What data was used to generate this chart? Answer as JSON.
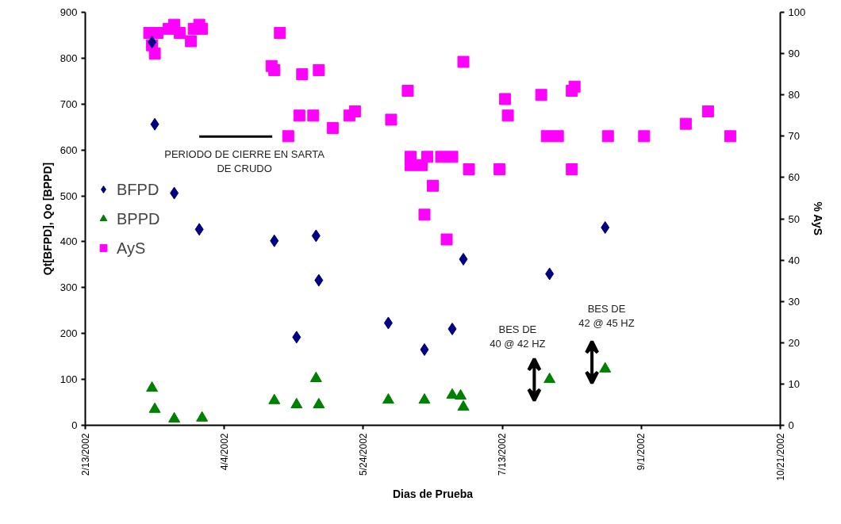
{
  "chart_data": {
    "type": "scatter",
    "xlabel": "Dias de Prueba",
    "ylabel": "Qt[BFPD], Qo [BPPD]",
    "y2label": "% AyS",
    "xlim": [
      "2002-02-13",
      "2002-10-21"
    ],
    "xticks": [
      {
        "value": "2002-02-13",
        "label": "2/13/2002"
      },
      {
        "value": "2002-04-04",
        "label": "4/4/2002"
      },
      {
        "value": "2002-05-24",
        "label": "5/24/2002"
      },
      {
        "value": "2002-07-13",
        "label": "7/13/2002"
      },
      {
        "value": "2002-09-01",
        "label": "9/1/2002"
      },
      {
        "value": "2002-10-21",
        "label": "10/21/2002"
      }
    ],
    "ylim": [
      0,
      900
    ],
    "yticks": [
      0,
      100,
      200,
      300,
      400,
      500,
      600,
      700,
      800,
      900
    ],
    "y2lim": [
      0,
      100
    ],
    "y2ticks": [
      0,
      10,
      20,
      30,
      40,
      50,
      60,
      70,
      80,
      90,
      100
    ],
    "grid": false,
    "legend": "left",
    "series": [
      {
        "name": "BFPD",
        "color": "#000080",
        "marker": "diamond",
        "x": [
          "2002-03-09",
          "2002-03-10",
          "2002-03-17",
          "2002-03-26",
          "2002-04-22",
          "2002-04-30",
          "2002-05-07",
          "2002-05-08",
          "2002-06-02",
          "2002-06-15",
          "2002-06-25",
          "2002-06-29",
          "2002-07-30",
          "2002-08-19"
        ],
        "values": [
          835,
          656,
          506,
          427,
          402,
          192,
          413,
          316,
          223,
          165,
          210,
          362,
          330,
          431
        ]
      },
      {
        "name": "BPPD",
        "color": "#008000",
        "marker": "triangle",
        "x": [
          "2002-03-09",
          "2002-03-10",
          "2002-03-17",
          "2002-03-27",
          "2002-04-22",
          "2002-04-30",
          "2002-05-07",
          "2002-05-08",
          "2002-06-02",
          "2002-06-15",
          "2002-06-25",
          "2002-06-28",
          "2002-06-29",
          "2002-07-30",
          "2002-08-19"
        ],
        "values": [
          81,
          35,
          14,
          16,
          54,
          45,
          102,
          45,
          55,
          55,
          66,
          64,
          40,
          100,
          123
        ]
      },
      {
        "name": "AyS",
        "color": "#ff00ff",
        "marker": "square",
        "axis": "y2",
        "x": [
          "2002-03-08",
          "2002-03-09",
          "2002-03-10",
          "2002-03-11",
          "2002-03-15",
          "2002-03-17",
          "2002-03-19",
          "2002-03-23",
          "2002-03-24",
          "2002-03-26",
          "2002-03-27",
          "2002-04-21",
          "2002-04-22",
          "2002-04-24",
          "2002-04-27",
          "2002-05-01",
          "2002-05-02",
          "2002-05-06",
          "2002-05-08",
          "2002-05-13",
          "2002-05-19",
          "2002-05-21",
          "2002-06-03",
          "2002-06-09",
          "2002-06-10",
          "2002-06-10",
          "2002-06-14",
          "2002-06-15",
          "2002-06-16",
          "2002-06-18",
          "2002-06-21",
          "2002-06-23",
          "2002-06-25",
          "2002-06-29",
          "2002-07-01",
          "2002-07-12",
          "2002-07-14",
          "2002-07-15",
          "2002-07-27",
          "2002-07-29",
          "2002-08-02",
          "2002-08-07",
          "2002-08-07",
          "2002-08-08",
          "2002-08-20",
          "2002-09-02",
          "2002-09-17",
          "2002-09-25",
          "2002-10-03"
        ],
        "values": [
          95,
          92,
          90,
          95,
          96,
          97,
          95,
          93,
          96,
          97,
          96,
          87,
          86,
          95,
          70,
          75,
          85,
          75,
          86,
          72,
          75,
          76,
          74,
          81,
          63,
          65,
          63,
          51,
          65,
          58,
          65,
          45,
          65,
          88,
          62,
          62,
          79,
          75,
          80,
          70,
          70,
          81,
          62,
          82,
          70,
          70,
          73,
          76,
          70
        ]
      }
    ],
    "annotations": [
      "PERIODO DE CIERRE EN SARTA\nDE CRUDO",
      "BES DE\n40 @ 42 HZ",
      "BES DE\n42 @ 45 HZ"
    ]
  }
}
